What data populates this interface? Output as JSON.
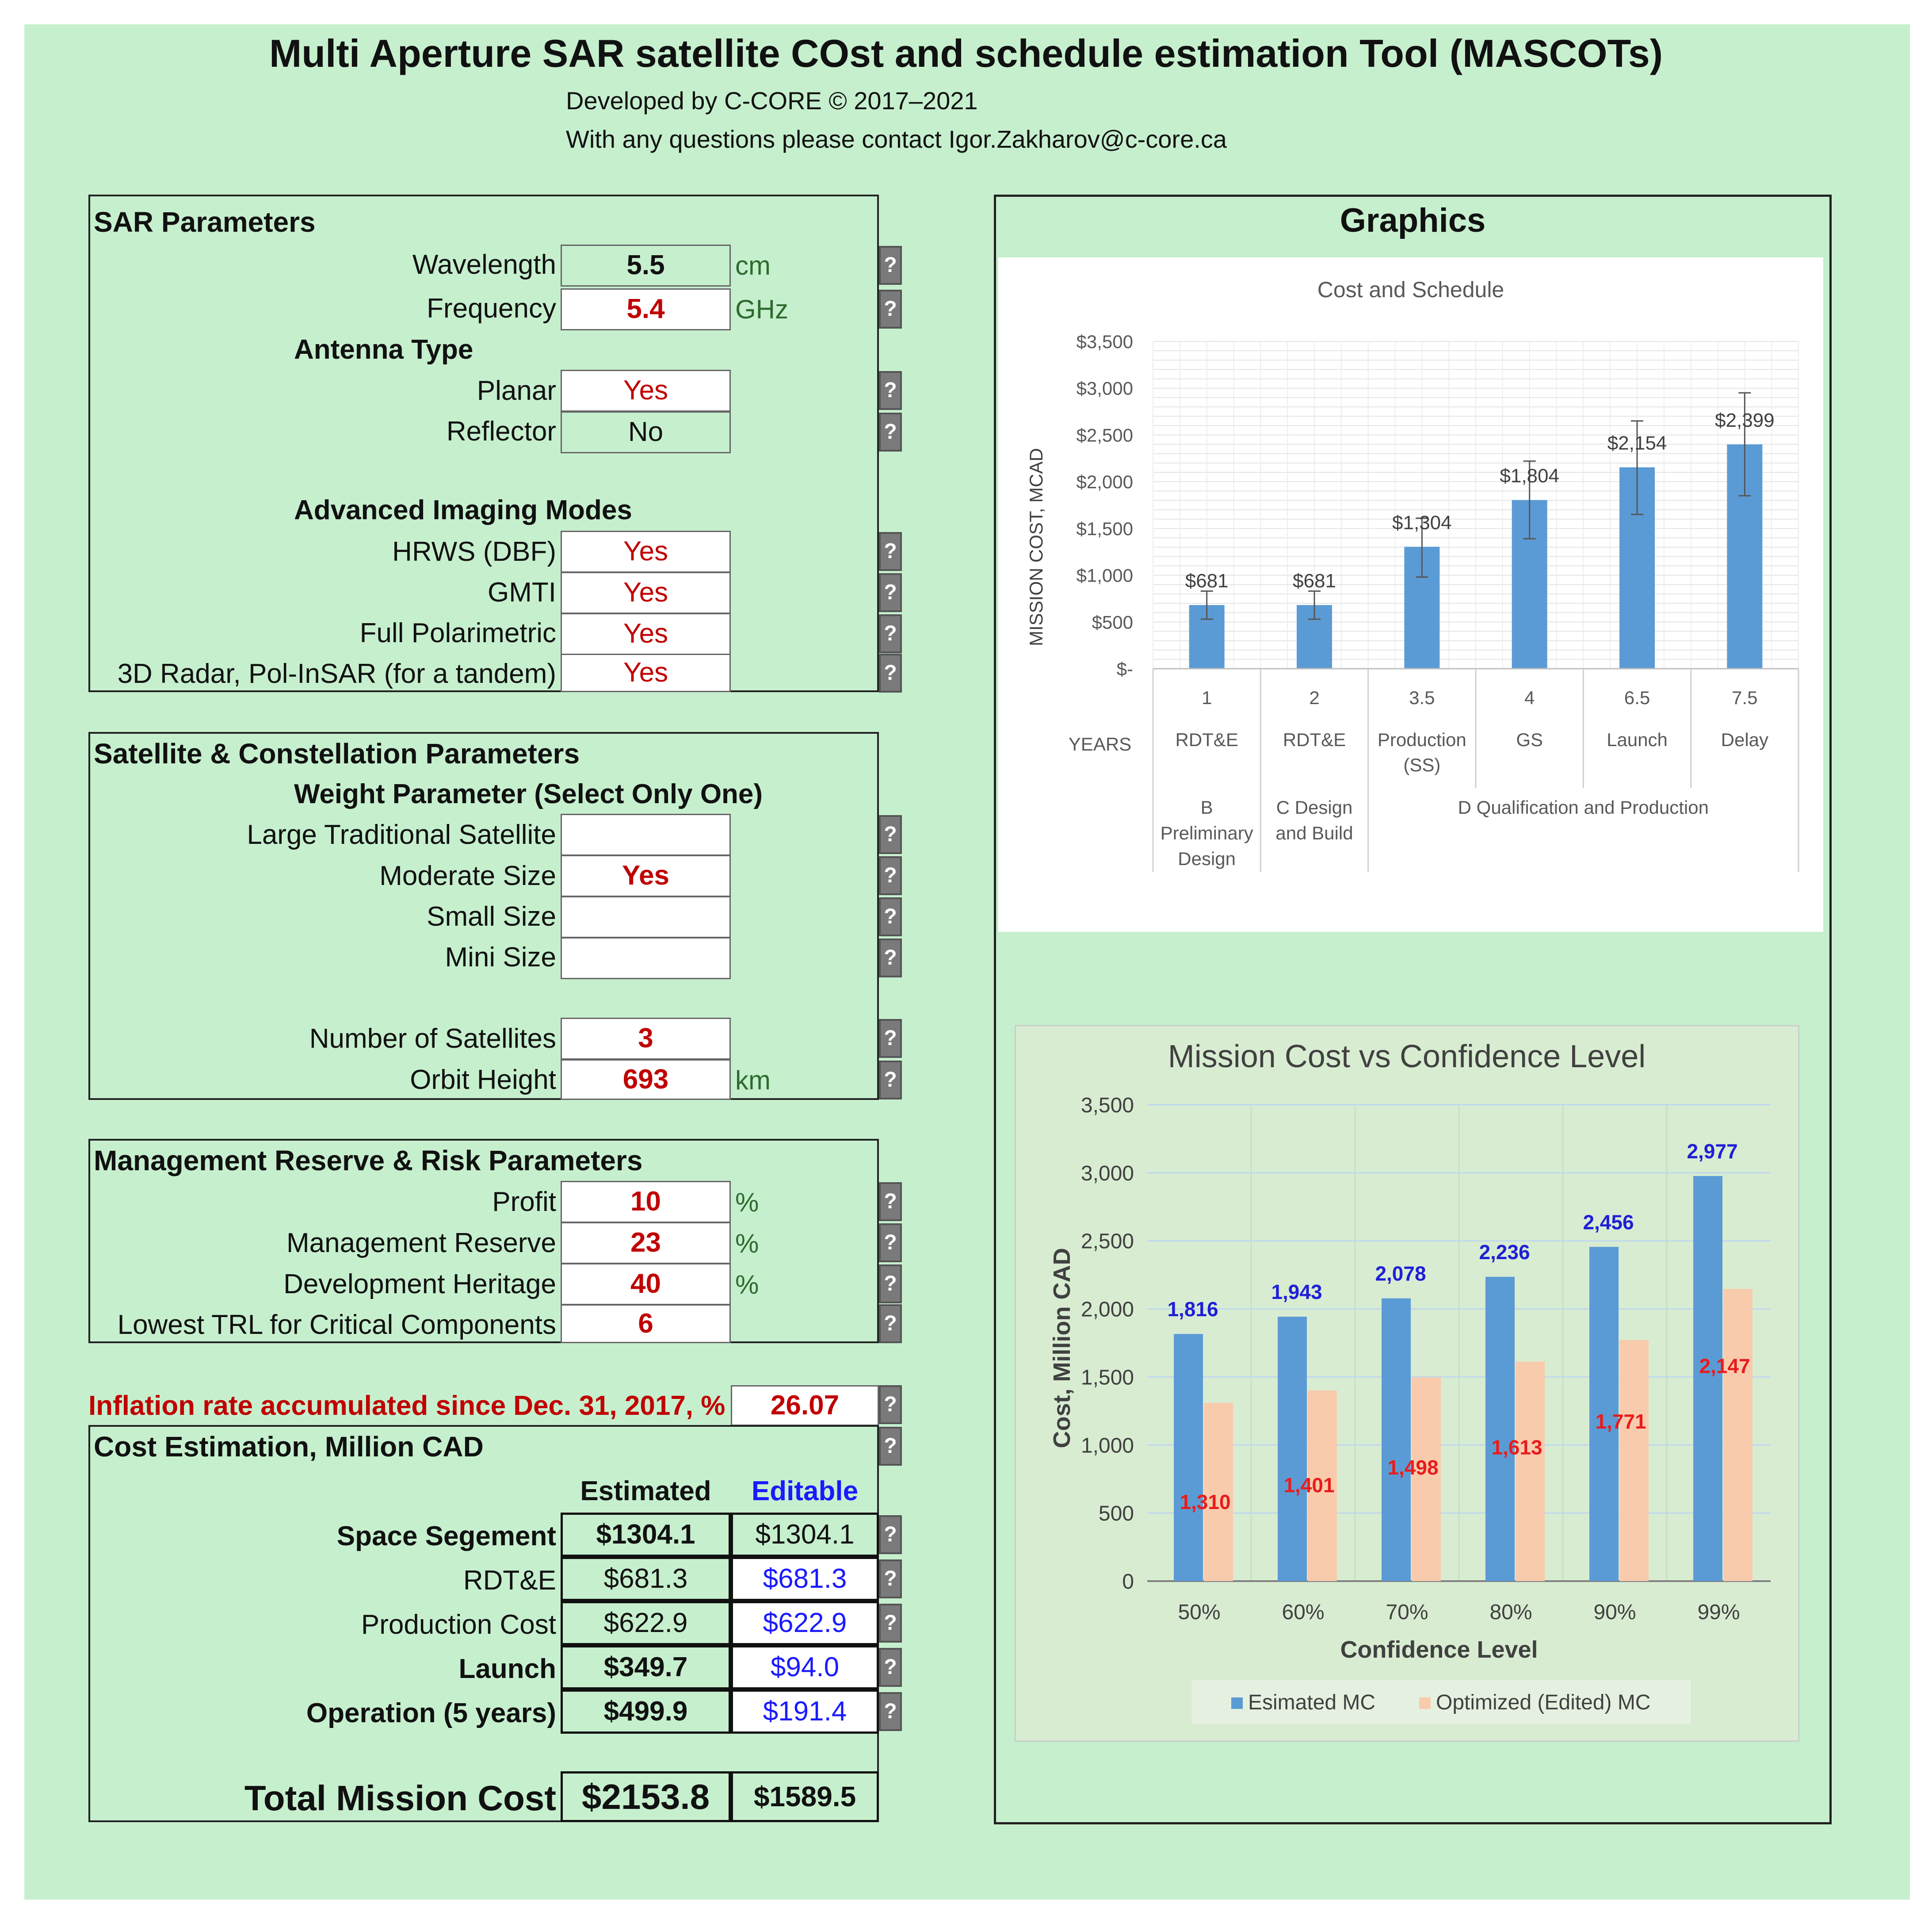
{
  "header": {
    "title": "Multi Aperture SAR satellite COst and schedule estimation Tool (MASCOTs)",
    "developed": "Developed by C-CORE © 2017–2021",
    "contact": "With any questions please contact Igor.Zakharov@c-core.ca"
  },
  "help_label": "?",
  "sar": {
    "title": "SAR Parameters",
    "wavelength_label": "Wavelength",
    "wavelength_value": "5.5",
    "wavelength_unit": "cm",
    "frequency_label": "Frequency",
    "frequency_value": "5.4",
    "frequency_unit": "GHz",
    "antenna_type": "Antenna Type",
    "planar_label": "Planar",
    "planar_value": "Yes",
    "reflector_label": "Reflector",
    "reflector_value": "No",
    "advanced_modes": "Advanced Imaging Modes",
    "hrws_label": "HRWS (DBF)",
    "hrws_value": "Yes",
    "gmti_label": "GMTI",
    "gmti_value": "Yes",
    "fullpol_label": "Full Polarimetric",
    "fullpol_value": "Yes",
    "radar3d_label": "3D Radar, Pol-InSAR (for a tandem)",
    "radar3d_value": "Yes"
  },
  "satellite": {
    "title": "Satellite & Constellation Parameters",
    "weight_title": "Weight Parameter (Select Only One)",
    "large_label": "Large Traditional Satellite",
    "large_value": "",
    "moderate_label": "Moderate Size",
    "moderate_value": "Yes",
    "small_label": "Small Size",
    "small_value": "",
    "mini_label": "Mini Size",
    "mini_value": "",
    "num_label": "Number of Satellites",
    "num_value": "3",
    "orbit_label": "Orbit Height",
    "orbit_value": "693",
    "orbit_unit": "km"
  },
  "management": {
    "title": "Management Reserve & Risk Parameters",
    "profit_label": "Profit",
    "profit_value": "10",
    "profit_unit": "%",
    "reserve_label": "Management Reserve",
    "reserve_value": "23",
    "reserve_unit": "%",
    "heritage_label": "Development Heritage",
    "heritage_value": "40",
    "heritage_unit": "%",
    "trl_label": "Lowest TRL for Critical Components",
    "trl_value": "6"
  },
  "inflation": {
    "label": "Inflation rate accumulated since Dec. 31, 2017, %",
    "value": "26.07"
  },
  "cost": {
    "title": "Cost Estimation, Million CAD",
    "col_estimated": "Estimated",
    "col_editable": "Editable",
    "rows": [
      {
        "label": "Space Segement",
        "estimated": "$1304.1",
        "editable": "$1304.1"
      },
      {
        "label": "RDT&E",
        "estimated": "$681.3",
        "editable": "$681.3"
      },
      {
        "label": "Production Cost",
        "estimated": "$622.9",
        "editable": "$622.9"
      },
      {
        "label": "Launch",
        "estimated": "$349.7",
        "editable": "$94.0"
      },
      {
        "label": "Operation (5 years)",
        "estimated": "$499.9",
        "editable": "$191.4"
      }
    ],
    "total_label": "Total Mission Cost",
    "total_estimated": "$2153.8",
    "total_editable": "$1589.5"
  },
  "graphics": {
    "title": "Graphics"
  },
  "chart_data": [
    {
      "type": "bar",
      "title": "Cost and Schedule",
      "ylabel": "MISSION COST, MCAD",
      "xlabel": "YEARS",
      "ylim": [
        0,
        3500
      ],
      "yticks": [
        "$3,500",
        "$3,000",
        "$2,500",
        "$2,000",
        "$1,500",
        "$1,000",
        "$500",
        "$-"
      ],
      "categories": [
        "1",
        "2",
        "3.5",
        "4",
        "6.5",
        "7.5"
      ],
      "phases": [
        "RDT&E",
        "RDT&E",
        "Production (SS)",
        "GS",
        "Launch",
        "Delay"
      ],
      "stages": [
        "B Preliminary Design",
        "C Design and Build",
        "D Qualification and Production"
      ],
      "values": [
        681,
        681,
        1304,
        1804,
        2154,
        2399
      ],
      "value_labels": [
        "$681",
        "$681",
        "$1,304",
        "$1,804",
        "$2,154",
        "$2,399"
      ],
      "error_low": [
        530,
        530,
        980,
        1390,
        1650,
        1850
      ],
      "error_high": [
        830,
        830,
        1610,
        2220,
        2650,
        2950
      ],
      "color": "#5b9bd5"
    },
    {
      "type": "bar",
      "title": "Mission Cost vs Confidence Level",
      "xlabel": "Confidence Level",
      "ylabel": "Cost, Million CAD",
      "ylim": [
        0,
        3500
      ],
      "yticks": [
        "3,500",
        "3,000",
        "2,500",
        "2,000",
        "1,500",
        "1,000",
        "500",
        "0"
      ],
      "categories": [
        "50%",
        "60%",
        "70%",
        "80%",
        "90%",
        "99%"
      ],
      "series": [
        {
          "name": "Esimated MC",
          "values": [
            1816,
            1943,
            2078,
            2236,
            2456,
            2977
          ],
          "labels": [
            "1,816",
            "1,943",
            "2,078",
            "2,236",
            "2,456",
            "2,977"
          ],
          "color": "#5b9bd5"
        },
        {
          "name": "Optimized (Edited) MC",
          "values": [
            1310,
            1401,
            1498,
            1613,
            1771,
            2147
          ],
          "labels": [
            "1,310",
            "1,401",
            "1,498",
            "1,613",
            "1,771",
            "2,147"
          ],
          "color": "#f8cbad"
        }
      ]
    }
  ]
}
